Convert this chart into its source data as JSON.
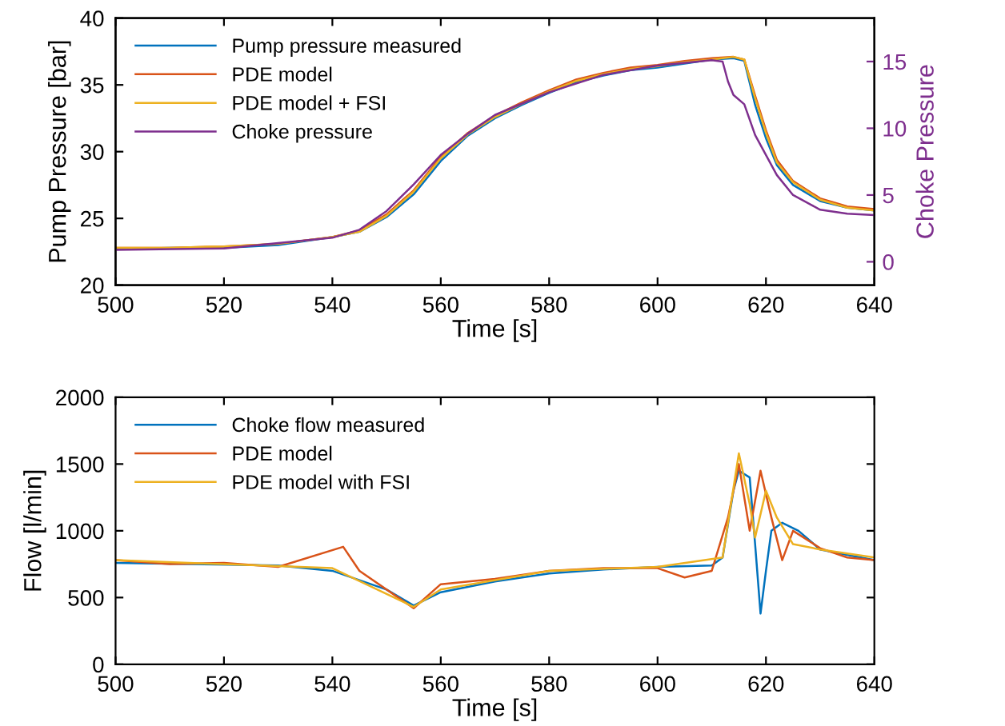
{
  "chart_data": [
    {
      "type": "line",
      "xlabel": "Time [s]",
      "ylabel": "Pump Pressure [bar]",
      "y2label": "Choke Pressure",
      "xlim": [
        500,
        640
      ],
      "xticks": [
        500,
        520,
        540,
        560,
        580,
        600,
        620,
        640
      ],
      "ylim": [
        20,
        40
      ],
      "yticks": [
        20,
        25,
        30,
        35,
        40
      ],
      "y2lim": [
        -1.75,
        18.25
      ],
      "y2ticks": [
        0,
        5,
        10,
        15
      ],
      "legend": "top left",
      "grid": false,
      "series": [
        {
          "name": "Pump pressure measured",
          "color": "#0072bd",
          "x": [
            500,
            510,
            520,
            530,
            540,
            545,
            550,
            555,
            560,
            565,
            570,
            575,
            580,
            585,
            590,
            595,
            600,
            605,
            610,
            614,
            616,
            618,
            620,
            622,
            625,
            630,
            635,
            640
          ],
          "values": [
            22.7,
            22.8,
            22.8,
            23.0,
            23.6,
            24.0,
            25.1,
            26.8,
            29.3,
            31.2,
            32.5,
            33.5,
            34.4,
            35.2,
            35.7,
            36.1,
            36.3,
            36.6,
            36.9,
            37.0,
            36.8,
            33.5,
            31.0,
            29.0,
            27.5,
            26.3,
            25.8,
            25.6
          ]
        },
        {
          "name": "PDE model",
          "color": "#d95319",
          "x": [
            500,
            510,
            520,
            530,
            540,
            545,
            550,
            555,
            560,
            565,
            570,
            575,
            580,
            585,
            590,
            595,
            600,
            605,
            610,
            614,
            616,
            618,
            620,
            622,
            625,
            630,
            635,
            640
          ],
          "values": [
            22.8,
            22.8,
            22.9,
            23.1,
            23.6,
            24.1,
            25.3,
            27.1,
            29.6,
            31.4,
            32.7,
            33.7,
            34.6,
            35.4,
            35.9,
            36.3,
            36.5,
            36.8,
            37.0,
            37.1,
            36.9,
            34.2,
            31.6,
            29.4,
            27.8,
            26.5,
            25.9,
            25.7
          ]
        },
        {
          "name": "PDE model + FSI",
          "color": "#edb120",
          "x": [
            500,
            510,
            520,
            530,
            540,
            545,
            550,
            555,
            560,
            565,
            570,
            575,
            580,
            585,
            590,
            595,
            600,
            605,
            610,
            614,
            616,
            618,
            620,
            622,
            625,
            630,
            635,
            640
          ],
          "values": [
            22.8,
            22.8,
            22.9,
            23.1,
            23.6,
            24.0,
            25.2,
            27.0,
            29.5,
            31.3,
            32.6,
            33.6,
            34.5,
            35.3,
            35.8,
            36.2,
            36.4,
            36.7,
            36.9,
            37.1,
            36.9,
            34.0,
            31.4,
            29.2,
            27.7,
            26.4,
            25.8,
            25.6
          ]
        },
        {
          "name": "Choke pressure",
          "color": "#7e2f8e",
          "axis": "y2",
          "x": [
            500,
            520,
            540,
            545,
            550,
            555,
            560,
            565,
            570,
            580,
            590,
            600,
            610,
            612,
            613,
            614,
            616,
            618,
            620,
            622,
            625,
            630,
            635,
            640
          ],
          "values": [
            0.9,
            1.0,
            1.8,
            2.4,
            3.8,
            5.8,
            8.0,
            9.6,
            11.0,
            12.7,
            14.0,
            14.7,
            15.1,
            15.0,
            13.5,
            12.5,
            11.8,
            9.5,
            8.0,
            6.5,
            5.0,
            3.9,
            3.6,
            3.5
          ]
        }
      ]
    },
    {
      "type": "line",
      "xlabel": "Time [s]",
      "ylabel": "Flow [l/min]",
      "xlim": [
        500,
        640
      ],
      "xticks": [
        500,
        520,
        540,
        560,
        580,
        600,
        620,
        640
      ],
      "ylim": [
        0,
        2000
      ],
      "yticks": [
        0,
        500,
        1000,
        1500,
        2000
      ],
      "legend": "top left",
      "grid": false,
      "series": [
        {
          "name": "Choke flow measured",
          "color": "#0072bd",
          "x": [
            500,
            530,
            540,
            550,
            555,
            560,
            570,
            580,
            590,
            600,
            610,
            612,
            614,
            615,
            617,
            618,
            619,
            620,
            621,
            623,
            626,
            630,
            635,
            640
          ],
          "values": [
            760,
            740,
            700,
            560,
            440,
            540,
            620,
            680,
            710,
            730,
            740,
            800,
            1300,
            1450,
            1400,
            900,
            380,
            700,
            1000,
            1060,
            1000,
            860,
            820,
            780
          ]
        },
        {
          "name": "PDE model",
          "color": "#d95319",
          "x": [
            500,
            510,
            520,
            530,
            542,
            545,
            555,
            560,
            570,
            580,
            590,
            600,
            605,
            610,
            613,
            615,
            617,
            619,
            621,
            623,
            625,
            630,
            635,
            640
          ],
          "values": [
            780,
            750,
            760,
            730,
            880,
            700,
            420,
            600,
            640,
            700,
            720,
            720,
            650,
            700,
            1100,
            1500,
            1000,
            1450,
            1100,
            780,
            1000,
            870,
            800,
            780
          ]
        },
        {
          "name": "PDE model with FSI",
          "color": "#edb120",
          "x": [
            500,
            520,
            540,
            555,
            560,
            580,
            600,
            612,
            615,
            617,
            618,
            620,
            622,
            625,
            630,
            640
          ],
          "values": [
            780,
            750,
            720,
            430,
            560,
            700,
            730,
            800,
            1580,
            1200,
            950,
            1300,
            1100,
            900,
            860,
            800
          ]
        }
      ]
    }
  ]
}
